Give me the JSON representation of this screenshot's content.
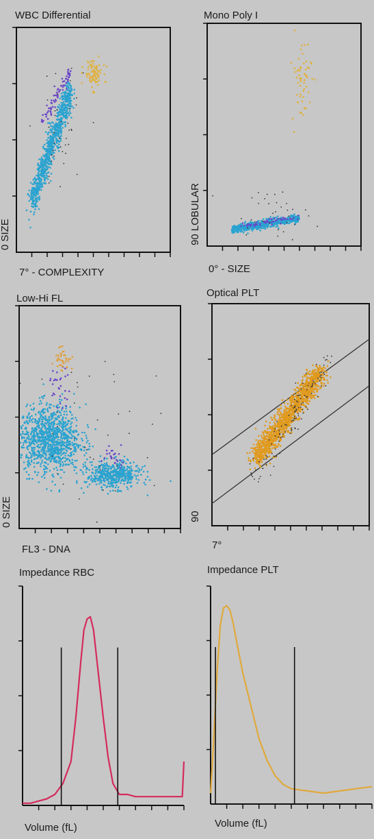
{
  "chart_data": [
    {
      "id": "wbc",
      "type": "scatter",
      "title": "WBC Differential",
      "xlabel": "7° - COMPLEXITY",
      "ylabel": "0 SIZE",
      "frame": "box",
      "clusters": [
        {
          "color": "#2aa3d0",
          "x": [
            0.1,
            0.35
          ],
          "y": [
            0.22,
            0.72
          ],
          "n": 900,
          "shape": "diagonal"
        },
        {
          "color": "#6a46c8",
          "x": [
            0.17,
            0.35
          ],
          "y": [
            0.58,
            0.8
          ],
          "n": 70,
          "shape": "diagonal"
        },
        {
          "color": "#e0b13c",
          "x": [
            0.44,
            0.56
          ],
          "y": [
            0.73,
            0.86
          ],
          "n": 90,
          "shape": "blob"
        },
        {
          "color": "#333333",
          "x": [
            0.1,
            0.45
          ],
          "y": [
            0.2,
            0.85
          ],
          "n": 40,
          "shape": "blob"
        }
      ]
    },
    {
      "id": "monopoly",
      "type": "scatter",
      "title": "Mono Poly I",
      "xlabel": "0° - SIZE",
      "ylabel": "90 LOBULAR",
      "frame": "box",
      "clusters": [
        {
          "color": "#2aa3d0",
          "x": [
            0.16,
            0.6
          ],
          "y": [
            0.05,
            0.15
          ],
          "n": 700,
          "shape": "band"
        },
        {
          "color": "#6a46c8",
          "x": [
            0.22,
            0.6
          ],
          "y": [
            0.07,
            0.15
          ],
          "n": 50,
          "shape": "band"
        },
        {
          "color": "#e0b13c",
          "x": [
            0.55,
            0.68
          ],
          "y": [
            0.55,
            0.95
          ],
          "n": 60,
          "shape": "blob"
        },
        {
          "color": "#333333",
          "x": [
            0.1,
            0.7
          ],
          "y": [
            0.04,
            0.25
          ],
          "n": 35,
          "shape": "blob"
        }
      ]
    },
    {
      "id": "lowhi",
      "type": "scatter",
      "title": "Low-Hi FL",
      "xlabel": "FL3 - DNA",
      "ylabel": "0 SIZE",
      "frame": "box",
      "clusters": [
        {
          "color": "#2aa3d0",
          "x": [
            0.0,
            0.38
          ],
          "y": [
            0.25,
            0.55
          ],
          "n": 1100,
          "shape": "blob"
        },
        {
          "color": "#2aa3d0",
          "x": [
            0.42,
            0.75
          ],
          "y": [
            0.18,
            0.3
          ],
          "n": 500,
          "shape": "blob"
        },
        {
          "color": "#6a46c8",
          "x": [
            0.18,
            0.32
          ],
          "y": [
            0.55,
            0.72
          ],
          "n": 30,
          "shape": "blob"
        },
        {
          "color": "#6a46c8",
          "x": [
            0.5,
            0.68
          ],
          "y": [
            0.28,
            0.38
          ],
          "n": 25,
          "shape": "blob"
        },
        {
          "color": "#e0a03c",
          "x": [
            0.22,
            0.32
          ],
          "y": [
            0.7,
            0.82
          ],
          "n": 40,
          "shape": "blob"
        },
        {
          "color": "#333333",
          "x": [
            0.05,
            0.95
          ],
          "y": [
            0.05,
            0.8
          ],
          "n": 40,
          "shape": "blob"
        }
      ]
    },
    {
      "id": "optplt",
      "type": "scatter",
      "title": "Optical PLT",
      "xlabel": "7°",
      "ylabel": "90",
      "frame": "box",
      "gates": [
        {
          "x1": 0.0,
          "y1": 0.32,
          "x2": 1.0,
          "y2": 0.84
        },
        {
          "x1": 0.0,
          "y1": 0.1,
          "x2": 1.0,
          "y2": 0.63
        }
      ],
      "clusters": [
        {
          "color": "#e09a1e",
          "x": [
            0.28,
            0.7
          ],
          "y": [
            0.3,
            0.7
          ],
          "n": 1400,
          "shape": "diagonal"
        },
        {
          "color": "#333333",
          "x": [
            0.25,
            0.75
          ],
          "y": [
            0.2,
            0.75
          ],
          "n": 120,
          "shape": "diagonal"
        }
      ]
    },
    {
      "id": "rbc",
      "type": "line",
      "title": "Impedance RBC",
      "xlabel": "Volume (fL)",
      "ylabel": "",
      "frame": "axes",
      "line_color": "#d42a5c",
      "series": [
        {
          "x": [
            0.0,
            0.05,
            0.1,
            0.15,
            0.2,
            0.25,
            0.3,
            0.33,
            0.36,
            0.38,
            0.4,
            0.42,
            0.44,
            0.47,
            0.5,
            0.53,
            0.56,
            0.6,
            0.65,
            0.7,
            0.75,
            0.8,
            0.85,
            0.9,
            0.95,
            0.99,
            1.0
          ],
          "y": [
            0.01,
            0.01,
            0.02,
            0.03,
            0.05,
            0.1,
            0.2,
            0.4,
            0.65,
            0.8,
            0.85,
            0.86,
            0.8,
            0.6,
            0.4,
            0.22,
            0.1,
            0.05,
            0.05,
            0.04,
            0.04,
            0.04,
            0.04,
            0.04,
            0.04,
            0.04,
            0.2
          ]
        }
      ],
      "vlines": [
        0.24,
        0.59
      ]
    },
    {
      "id": "imppltt",
      "type": "line",
      "title": "Impedance PLT",
      "xlabel": "Volume (fL)",
      "ylabel": "",
      "frame": "axes",
      "line_color": "#e0a93c",
      "series": [
        {
          "x": [
            0.0,
            0.02,
            0.04,
            0.06,
            0.08,
            0.1,
            0.12,
            0.14,
            0.16,
            0.2,
            0.25,
            0.3,
            0.35,
            0.4,
            0.45,
            0.5,
            0.6,
            0.7,
            0.8,
            0.9,
            1.0
          ],
          "y": [
            0.05,
            0.3,
            0.6,
            0.82,
            0.9,
            0.91,
            0.89,
            0.83,
            0.75,
            0.6,
            0.45,
            0.3,
            0.2,
            0.13,
            0.09,
            0.07,
            0.06,
            0.05,
            0.06,
            0.07,
            0.08
          ]
        }
      ],
      "vlines": [
        0.03,
        0.52
      ]
    }
  ]
}
